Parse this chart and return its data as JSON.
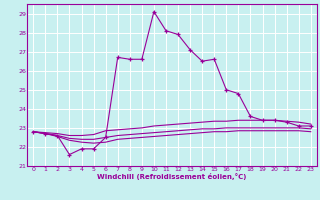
{
  "xlabel": "Windchill (Refroidissement éolien,°C)",
  "bg_color": "#c8f0f0",
  "line_color": "#990099",
  "grid_color": "#ffffff",
  "spine_color": "#660066",
  "xlim": [
    -0.5,
    23.5
  ],
  "ylim": [
    21,
    29.5
  ],
  "yticks": [
    21,
    22,
    23,
    24,
    25,
    26,
    27,
    28,
    29
  ],
  "xticks": [
    0,
    1,
    2,
    3,
    4,
    5,
    6,
    7,
    8,
    9,
    10,
    11,
    12,
    13,
    14,
    15,
    16,
    17,
    18,
    19,
    20,
    21,
    22,
    23
  ],
  "series": [
    {
      "x": [
        0,
        1,
        2,
        3,
        4,
        5,
        6,
        7,
        8,
        9,
        10,
        11,
        12,
        13,
        14,
        15,
        16,
        17,
        18,
        19,
        20,
        21,
        22,
        23
      ],
      "y": [
        22.8,
        22.7,
        22.6,
        21.6,
        21.9,
        21.9,
        22.5,
        26.7,
        26.6,
        26.6,
        29.1,
        28.1,
        27.9,
        27.1,
        26.5,
        26.6,
        25.0,
        24.8,
        23.6,
        23.4,
        23.4,
        23.3,
        23.1,
        23.1
      ],
      "marker": "+"
    },
    {
      "x": [
        0,
        1,
        2,
        3,
        4,
        5,
        6,
        7,
        8,
        9,
        10,
        11,
        12,
        13,
        14,
        15,
        16,
        17,
        18,
        19,
        20,
        21,
        22,
        23
      ],
      "y": [
        22.8,
        22.75,
        22.7,
        22.6,
        22.6,
        22.65,
        22.85,
        22.9,
        22.95,
        23.0,
        23.1,
        23.15,
        23.2,
        23.25,
        23.3,
        23.35,
        23.35,
        23.4,
        23.4,
        23.4,
        23.4,
        23.35,
        23.3,
        23.2
      ],
      "marker": null
    },
    {
      "x": [
        0,
        1,
        2,
        3,
        4,
        5,
        6,
        7,
        8,
        9,
        10,
        11,
        12,
        13,
        14,
        15,
        16,
        17,
        18,
        19,
        20,
        21,
        22,
        23
      ],
      "y": [
        22.8,
        22.7,
        22.6,
        22.45,
        22.4,
        22.4,
        22.5,
        22.6,
        22.65,
        22.7,
        22.75,
        22.8,
        22.85,
        22.9,
        22.95,
        22.95,
        23.0,
        23.0,
        23.0,
        23.0,
        23.0,
        23.0,
        23.0,
        22.95
      ],
      "marker": null
    },
    {
      "x": [
        0,
        1,
        2,
        3,
        4,
        5,
        6,
        7,
        8,
        9,
        10,
        11,
        12,
        13,
        14,
        15,
        16,
        17,
        18,
        19,
        20,
        21,
        22,
        23
      ],
      "y": [
        22.8,
        22.7,
        22.55,
        22.35,
        22.25,
        22.2,
        22.25,
        22.4,
        22.45,
        22.5,
        22.55,
        22.6,
        22.65,
        22.7,
        22.75,
        22.8,
        22.8,
        22.85,
        22.85,
        22.85,
        22.85,
        22.85,
        22.85,
        22.8
      ],
      "marker": null
    }
  ]
}
